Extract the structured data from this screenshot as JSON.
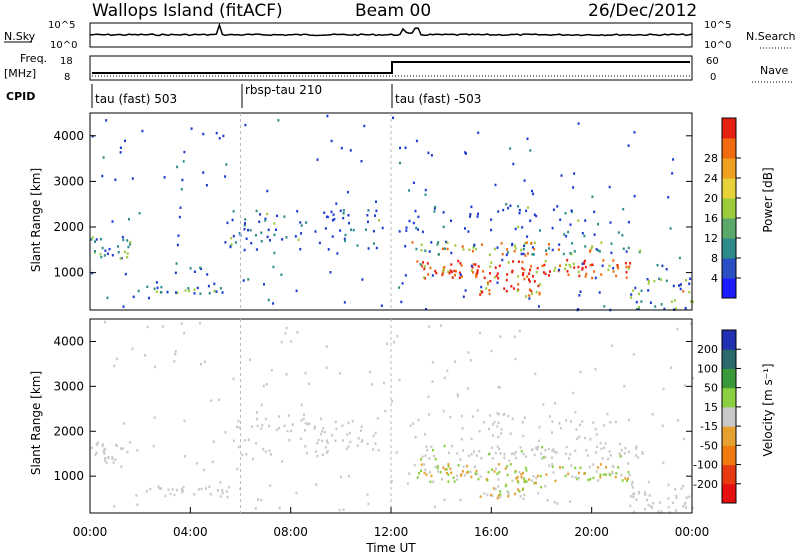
{
  "header": {
    "station": "Wallops Island (fitACF)",
    "beam": "Beam 00",
    "date": "26/Dec/2012"
  },
  "top_panels": {
    "nsky_label": "N.Sky",
    "nsky_ticks": [
      "10^5",
      "10^0"
    ],
    "nsearch_label": "N.Search",
    "nsearch_ticks": [
      "10^5",
      "10^0"
    ],
    "freq_label": "Freq.",
    "freq_unit": "[MHz]",
    "freq_ticks": [
      "18",
      "8"
    ],
    "nave_label": "Nave",
    "nave_ticks": [
      "60",
      "0"
    ],
    "cpid_label": "CPID",
    "cpid_segments": [
      {
        "label": "tau (fast) 503",
        "start_hr": 0
      },
      {
        "label": "rbsp-tau 210",
        "start_hr": 6
      },
      {
        "label": "tau (fast) -503",
        "start_hr": 12
      }
    ]
  },
  "chart_data": [
    {
      "type": "heatmap",
      "panel": "power",
      "xlabel": "Time UT",
      "ylabel": "Slant Range [km]",
      "x_ticks": [
        "00:00",
        "04:00",
        "08:00",
        "12:00",
        "16:00",
        "20:00",
        "00:00"
      ],
      "xlim_hr": [
        0,
        24
      ],
      "ylim_km": [
        180,
        4500
      ],
      "y_ticks": [
        1000,
        2000,
        3000,
        4000
      ],
      "colorbar": {
        "label": "Power [dB]",
        "ticks": [
          4,
          8,
          12,
          16,
          20,
          24,
          28
        ],
        "colors": [
          "#1c1cff",
          "#2a4fc2",
          "#2f8a8a",
          "#5aa86a",
          "#9ccc3c",
          "#e6d23a",
          "#f0a020",
          "#f06a10",
          "#e62010"
        ]
      }
    },
    {
      "type": "heatmap",
      "panel": "velocity",
      "xlabel": "Time UT",
      "ylabel": "Slant Range [km]",
      "x_ticks": [
        "00:00",
        "04:00",
        "08:00",
        "12:00",
        "16:00",
        "20:00",
        "00:00"
      ],
      "xlim_hr": [
        0,
        24
      ],
      "ylim_km": [
        180,
        4500
      ],
      "y_ticks": [
        1000,
        2000,
        3000,
        4000
      ],
      "colorbar": {
        "label": "Velocity [m s⁻¹]",
        "ticks": [
          200,
          100,
          50,
          15,
          -15,
          -50,
          -100,
          -200
        ],
        "colors": [
          "#2030b0",
          "#2a6a6a",
          "#3a9a3a",
          "#8ad040",
          "#c8c8c8",
          "#e6a030",
          "#f07a10",
          "#e83a10",
          "#e61010"
        ]
      }
    }
  ]
}
